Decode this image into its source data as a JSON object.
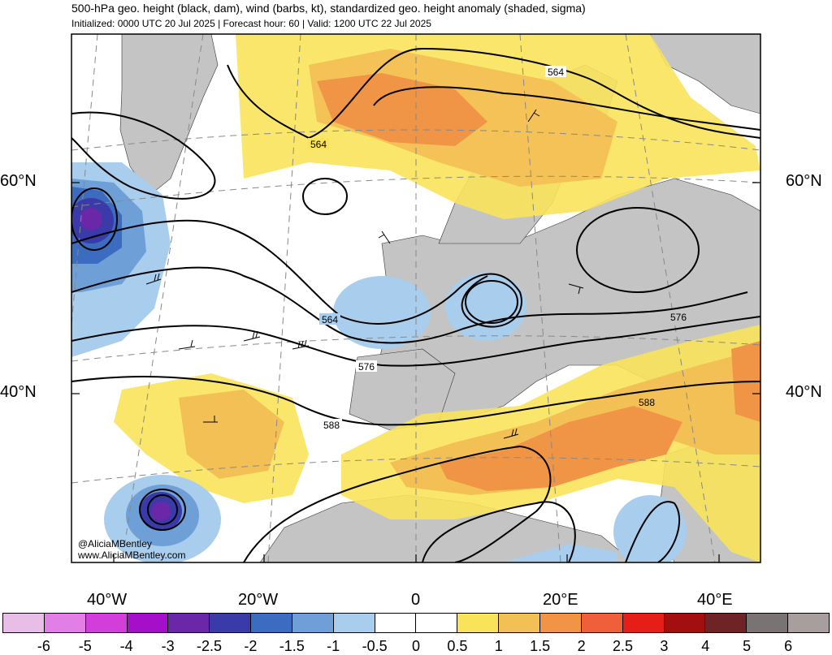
{
  "header": {
    "title": "500-hPa geo. height (black, dam), wind (barbs, kt), standardized geo. height anomaly (shaded, sigma)",
    "subtitle": "Initialized: 0000 UTC 20 Jul 2025 | Forecast hour: 60 | Valid: 1200 UTC 22 Jul 2025"
  },
  "axes": {
    "lat_left": [
      "60°N",
      "40°N"
    ],
    "lat_right": [
      "60°N",
      "40°N"
    ],
    "lon_bottom": [
      "40°W",
      "20°W",
      "0",
      "20°E",
      "40°E"
    ]
  },
  "contour_labels": [
    "564",
    "564",
    "564",
    "576",
    "576",
    "588",
    "588"
  ],
  "credit": {
    "handle": "@AliciaMBentley",
    "site": "www.AliciaMBentley.com"
  },
  "colorbar": {
    "labels": [
      "-6",
      "-5",
      "-4",
      "-3",
      "-2.5",
      "-2",
      "-1.5",
      "-1",
      "-0.5",
      "0",
      "0.5",
      "1",
      "1.5",
      "2",
      "2.5",
      "3",
      "4",
      "5",
      "6"
    ],
    "colors": [
      "#e8bee8",
      "#e27fe6",
      "#d23ed9",
      "#a40fc9",
      "#6a28a8",
      "#3a3aa8",
      "#3b6cc0",
      "#6e9fd6",
      "#a9cdec",
      "#ffffff",
      "#ffffff",
      "#f8e35a",
      "#f3c056",
      "#f09445",
      "#ee5f3a",
      "#e61e19",
      "#a30f0f",
      "#6e2424",
      "#7a7373",
      "#a99e9e"
    ]
  },
  "map_colors": {
    "land": "#c4c4c4",
    "anom_pos1": "#f8e35a",
    "anom_pos2": "#f3c056",
    "anom_pos3": "#f09445",
    "anom_neg1": "#a9cdec",
    "anom_neg2": "#6e9fd6",
    "anom_neg3": "#3b6cc0",
    "anom_neg4": "#3a3aa8",
    "anom_neg5": "#6a28a8"
  }
}
